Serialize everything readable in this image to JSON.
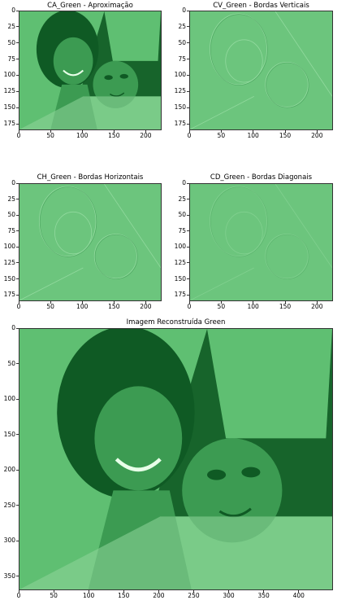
{
  "figure": {
    "panels": [
      {
        "id": "ca",
        "title": "CA_Green - Aproximação",
        "xticks": [
          "0",
          "50",
          "100",
          "150",
          "200"
        ],
        "yticks": [
          "0",
          "25",
          "50",
          "75",
          "100",
          "125",
          "150",
          "175"
        ],
        "xmax": 225,
        "ymax": 185,
        "style": "photo-small"
      },
      {
        "id": "cv",
        "title": "CV_Green - Bordas Verticais",
        "xticks": [
          "0",
          "50",
          "100",
          "150",
          "200"
        ],
        "yticks": [
          "0",
          "25",
          "50",
          "75",
          "100",
          "125",
          "150",
          "175"
        ],
        "xmax": 225,
        "ymax": 185,
        "style": "edge"
      },
      {
        "id": "ch",
        "title": "CH_Green - Bordas Horizontais",
        "xticks": [
          "0",
          "50",
          "100",
          "150",
          "200"
        ],
        "yticks": [
          "0",
          "25",
          "50",
          "75",
          "100",
          "125",
          "150",
          "175"
        ],
        "xmax": 225,
        "ymax": 185,
        "style": "edge"
      },
      {
        "id": "cd",
        "title": "CD_Green - Bordas Diagonais",
        "xticks": [
          "0",
          "50",
          "100",
          "150",
          "200"
        ],
        "yticks": [
          "0",
          "25",
          "50",
          "75",
          "100",
          "125",
          "150",
          "175"
        ],
        "xmax": 225,
        "ymax": 185,
        "style": "edge-flat"
      },
      {
        "id": "rec",
        "title": "Imagem Reconstruída Green",
        "xticks": [
          "0",
          "50",
          "100",
          "150",
          "200",
          "250",
          "300",
          "350",
          "400"
        ],
        "yticks": [
          "0",
          "50",
          "100",
          "150",
          "200",
          "250",
          "300",
          "350"
        ],
        "xmax": 449,
        "ymax": 370,
        "style": "photo-large"
      }
    ],
    "colors": {
      "bg_green": "#5fbf72",
      "dark_green": "#0f5a24",
      "mid_green": "#3c9b52",
      "light_green": "#8fd69a",
      "edge_bg": "#6cc57d"
    }
  }
}
